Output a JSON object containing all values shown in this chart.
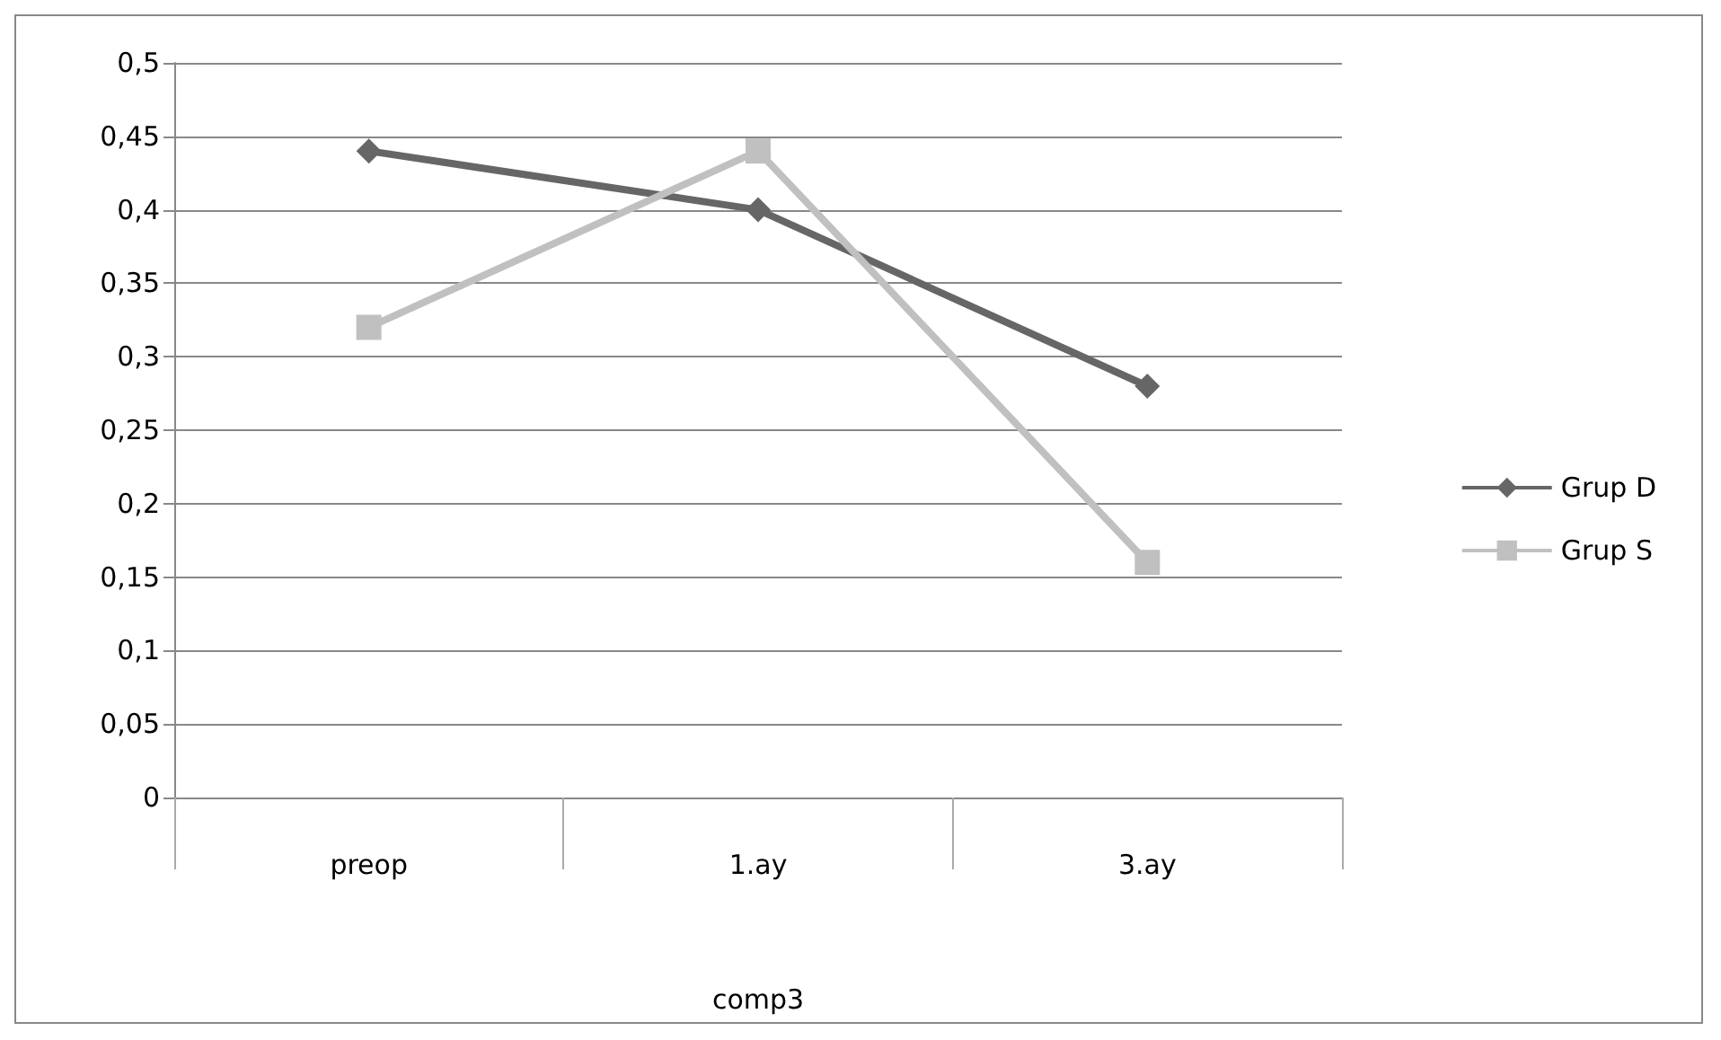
{
  "chart_data": {
    "type": "line",
    "xlabel": "comp3",
    "categories": [
      "preop",
      "1.ay",
      "3.ay"
    ],
    "series": [
      {
        "name": "Grup D",
        "color": "#666666",
        "values": [
          0.44,
          0.4,
          0.28
        ],
        "marker": "diamond"
      },
      {
        "name": "Grup S",
        "color": "#c0c0c0",
        "values": [
          0.32,
          0.44,
          0.16
        ],
        "marker": "square"
      }
    ],
    "ylim": [
      0,
      0.5
    ],
    "yticks": [
      {
        "value": 0,
        "label": "0"
      },
      {
        "value": 0.05,
        "label": "0,05"
      },
      {
        "value": 0.1,
        "label": "0,1"
      },
      {
        "value": 0.15,
        "label": "0,15"
      },
      {
        "value": 0.2,
        "label": "0,2"
      },
      {
        "value": 0.25,
        "label": "0,25"
      },
      {
        "value": 0.3,
        "label": "0,3"
      },
      {
        "value": 0.35,
        "label": "0,35"
      },
      {
        "value": 0.4,
        "label": "0,4"
      },
      {
        "value": 0.45,
        "label": "0,45"
      },
      {
        "value": 0.5,
        "label": "0,5"
      }
    ],
    "grid": "y",
    "legend": "right",
    "line_style": "solid"
  }
}
